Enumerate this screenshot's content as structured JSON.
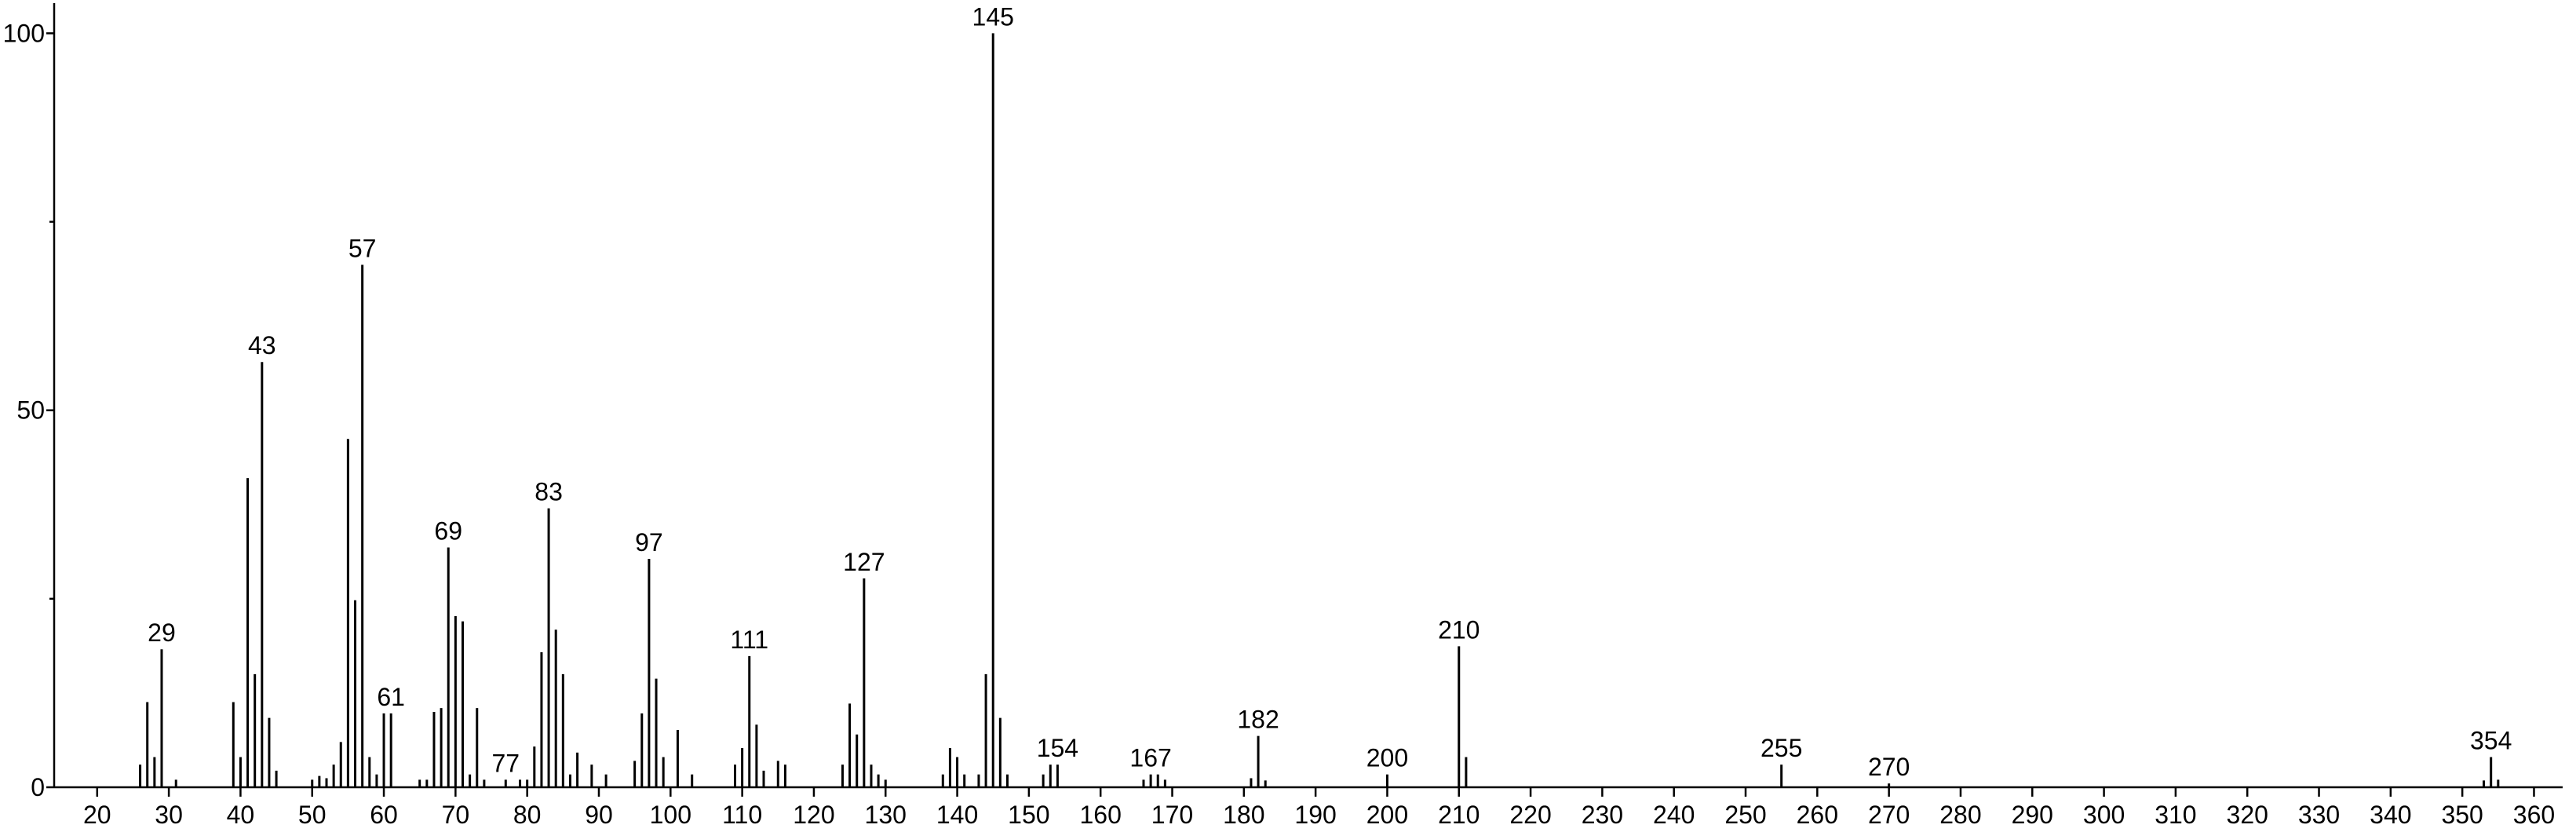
{
  "chart_data": {
    "type": "stem",
    "color": "#000000",
    "x": [
      26,
      27,
      28,
      29,
      31,
      39,
      40,
      41,
      42,
      43,
      44,
      45,
      50,
      51,
      52,
      53,
      54,
      55,
      56,
      57,
      58,
      59,
      60,
      61,
      65,
      66,
      67,
      68,
      69,
      70,
      71,
      72,
      73,
      74,
      77,
      79,
      80,
      81,
      82,
      83,
      84,
      85,
      86,
      87,
      89,
      91,
      95,
      96,
      97,
      98,
      99,
      101,
      103,
      109,
      110,
      111,
      112,
      113,
      115,
      116,
      124,
      125,
      126,
      127,
      128,
      129,
      130,
      138,
      139,
      140,
      141,
      143,
      144,
      145,
      146,
      147,
      152,
      153,
      154,
      166,
      167,
      168,
      169,
      181,
      182,
      183,
      200,
      210,
      211,
      255,
      270,
      353,
      354,
      355
    ],
    "values": [
      3,
      11.3,
      4,
      18.3,
      1,
      11.3,
      4,
      41,
      15,
      56.4,
      9.2,
      2.2,
      1,
      1.5,
      1.2,
      3,
      6,
      46.2,
      24.8,
      69.3,
      4,
      1.7,
      9.8,
      9.8,
      1,
      1,
      10,
      10.5,
      31.8,
      22.7,
      22,
      1.7,
      10.5,
      1,
      1,
      1,
      1,
      5.4,
      17.9,
      37,
      20.9,
      15,
      1.7,
      4.6,
      3,
      1.7,
      3.5,
      9.8,
      30.3,
      14.4,
      4,
      7.6,
      1.7,
      3,
      5.2,
      17.4,
      8.3,
      2.2,
      3.5,
      3,
      3,
      11.1,
      7,
      27.7,
      3,
      1.7,
      1,
      1.7,
      5.2,
      4,
      1.7,
      1.7,
      15,
      100,
      9.2,
      1.7,
      1.7,
      3,
      3,
      1,
      1.7,
      1.7,
      1,
      1.2,
      6.8,
      0.9,
      1.7,
      18.7,
      4,
      3,
      0.5,
      0.9,
      4,
      1
    ],
    "annotations": [
      29,
      43,
      57,
      61,
      69,
      77,
      83,
      97,
      111,
      127,
      145,
      154,
      167,
      182,
      200,
      210,
      255,
      270,
      354
    ],
    "xlim": [
      14,
      364
    ],
    "xticks": [
      20,
      30,
      40,
      50,
      60,
      70,
      80,
      90,
      100,
      110,
      120,
      130,
      140,
      150,
      160,
      170,
      180,
      190,
      200,
      210,
      220,
      230,
      240,
      250,
      260,
      270,
      280,
      290,
      300,
      310,
      320,
      330,
      340,
      350,
      360
    ],
    "ylim": [
      0,
      104
    ],
    "yticks": [
      0,
      50,
      100
    ],
    "yminorticks": [
      25,
      75
    ]
  }
}
